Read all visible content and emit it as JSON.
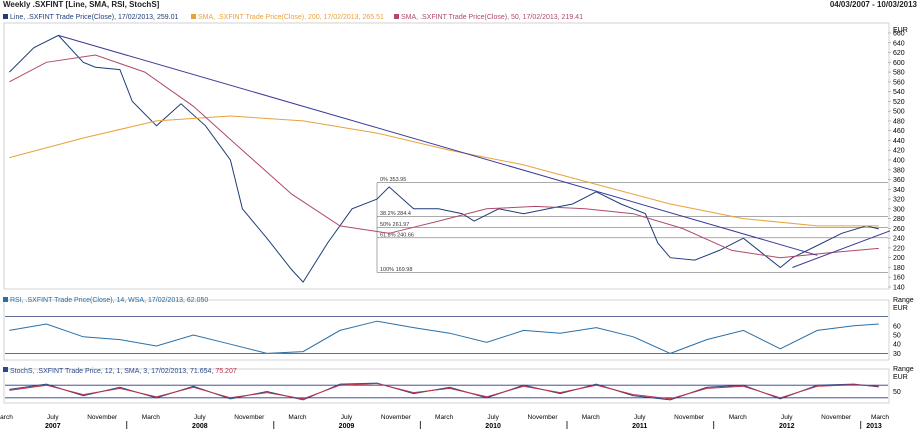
{
  "header": {
    "title": "Weekly .SXFINT [Line, SMA, RSI, StochS]",
    "date_range": "04/03/2007 - 10/03/2013"
  },
  "legends": {
    "main": [
      {
        "text": "Line, .SXFINT Trade Price(Close), 17/02/2013, 259.01",
        "color": "#1f3d7a"
      },
      {
        "text": "SMA, .SXFINT Trade Price(Close), 200, 17/02/2013, 265.51",
        "color": "#e8a23c"
      },
      {
        "text": "SMA, .SXFINT Trade Price(Close), 50, 17/02/2013, 219.41",
        "color": "#b04a6a"
      }
    ],
    "rsi": {
      "text": "RSI, .SXFINT Trade Price(Close), 14, WSA, 17/02/2013, 62.050",
      "color": "#2a6fa6"
    },
    "stoch_prefix": "StochS, .SXFINT Trade Price, 12, 1, SMA, 3, 17/02/2013, 71.654, ",
    "stoch_value": "75.207",
    "stoch_colors": {
      "k": "#2b4a8a",
      "d": "#c0304a"
    }
  },
  "axes": {
    "main_unit": "EUR",
    "main_ticks": [
      "660",
      "640",
      "620",
      "600",
      "580",
      "560",
      "540",
      "520",
      "500",
      "480",
      "460",
      "440",
      "420",
      "400",
      "380",
      "360",
      "340",
      "320",
      "300",
      "280",
      "260",
      "240",
      "220",
      "200",
      "180",
      "160",
      "140"
    ],
    "rsi_range": "Range",
    "rsi_unit": "EUR",
    "rsi_ticks": [
      "60",
      "50",
      "40",
      "30"
    ],
    "stoch_range": "Range",
    "stoch_unit": "EUR",
    "stoch_ticks": [
      "50"
    ],
    "x_months": [
      "March",
      "July",
      "November",
      "March",
      "July",
      "November",
      "March",
      "July",
      "November",
      "March",
      "July",
      "November",
      "March",
      "July",
      "November",
      "March",
      "July",
      "November",
      "March"
    ],
    "x_years": [
      "2007",
      "2008",
      "2009",
      "2010",
      "2011",
      "2012",
      "2013"
    ]
  },
  "fib_labels": [
    {
      "text": "0%  353.95",
      "value": 353.95
    },
    {
      "text": "38.2%  284.4",
      "value": 284.4
    },
    {
      "text": "50%  261.97",
      "value": 261.97
    },
    {
      "text": "61.8%  240.66",
      "value": 240.66
    },
    {
      "text": "100%  169.98",
      "value": 169.98
    }
  ],
  "chart_data": {
    "type": "line",
    "x_range": [
      "2007-03-04",
      "2013-03-10"
    ],
    "main": {
      "ylim": [
        140,
        660
      ],
      "series": [
        {
          "name": "Line, .SXFINT Trade Price(Close)",
          "color": "#1f3d7a",
          "x": [
            "2007-03",
            "2007-05",
            "2007-07",
            "2007-09",
            "2007-10",
            "2007-12",
            "2008-01",
            "2008-03",
            "2008-05",
            "2008-07",
            "2008-09",
            "2008-10",
            "2008-12",
            "2009-02",
            "2009-03",
            "2009-05",
            "2009-07",
            "2009-09",
            "2009-10",
            "2009-12",
            "2010-02",
            "2010-04",
            "2010-05",
            "2010-07",
            "2010-09",
            "2010-11",
            "2011-01",
            "2011-03",
            "2011-05",
            "2011-07",
            "2011-08",
            "2011-09",
            "2011-11",
            "2012-01",
            "2012-03",
            "2012-05",
            "2012-06",
            "2012-07",
            "2012-09",
            "2012-11",
            "2013-01",
            "2013-02"
          ],
          "y": [
            580,
            630,
            655,
            600,
            590,
            585,
            520,
            470,
            515,
            470,
            400,
            300,
            240,
            175,
            150,
            230,
            300,
            320,
            345,
            300,
            300,
            290,
            275,
            300,
            290,
            300,
            310,
            335,
            310,
            290,
            230,
            200,
            195,
            215,
            240,
            200,
            180,
            200,
            225,
            250,
            265,
            259
          ]
        },
        {
          "name": "SMA, .SXFINT Trade Price(Close), 200",
          "color": "#e8a23c",
          "x": [
            "2007-03",
            "2007-09",
            "2008-03",
            "2008-09",
            "2009-03",
            "2009-09",
            "2010-03",
            "2010-09",
            "2011-03",
            "2011-09",
            "2012-03",
            "2012-09",
            "2013-02"
          ],
          "y": [
            405,
            445,
            480,
            490,
            480,
            455,
            420,
            390,
            350,
            310,
            280,
            265,
            265
          ]
        },
        {
          "name": "SMA, .SXFINT Trade Price(Close), 50",
          "color": "#b04a6a",
          "x": [
            "2007-03",
            "2007-06",
            "2007-10",
            "2008-02",
            "2008-06",
            "2008-10",
            "2009-02",
            "2009-06",
            "2009-10",
            "2010-02",
            "2010-06",
            "2010-10",
            "2011-02",
            "2011-06",
            "2011-10",
            "2012-02",
            "2012-06",
            "2012-10",
            "2013-02"
          ],
          "y": [
            560,
            600,
            615,
            580,
            510,
            420,
            330,
            265,
            250,
            275,
            300,
            305,
            300,
            290,
            260,
            215,
            200,
            210,
            219
          ]
        }
      ],
      "trendlines": [
        {
          "x": [
            "2007-07",
            "2012-09"
          ],
          "y": [
            655,
            205
          ]
        },
        {
          "x": [
            "2012-07",
            "2013-03"
          ],
          "y": [
            180,
            255
          ]
        }
      ]
    },
    "rsi": {
      "ylim": [
        25,
        75
      ],
      "series": [
        {
          "name": "RSI, .SXFINT Trade Price(Close), 14, WSA",
          "color": "#2a6fa6",
          "x": [
            "2007-03",
            "2007-06",
            "2007-09",
            "2007-12",
            "2008-03",
            "2008-06",
            "2008-09",
            "2008-12",
            "2009-03",
            "2009-06",
            "2009-09",
            "2009-12",
            "2010-03",
            "2010-06",
            "2010-09",
            "2010-12",
            "2011-03",
            "2011-06",
            "2011-09",
            "2011-12",
            "2012-03",
            "2012-06",
            "2012-09",
            "2012-12",
            "2013-02"
          ],
          "y": [
            55,
            62,
            48,
            45,
            38,
            50,
            40,
            30,
            32,
            55,
            65,
            58,
            52,
            42,
            55,
            52,
            58,
            48,
            30,
            45,
            55,
            35,
            55,
            60,
            62
          ]
        }
      ]
    },
    "stoch": {
      "ylim": [
        0,
        100
      ],
      "series": [
        {
          "name": "StochS %K",
          "color": "#2b4a8a",
          "x": [
            "2007-03",
            "2007-06",
            "2007-09",
            "2007-12",
            "2008-03",
            "2008-06",
            "2008-09",
            "2008-12",
            "2009-03",
            "2009-06",
            "2009-09",
            "2009-12",
            "2010-03",
            "2010-06",
            "2010-09",
            "2010-12",
            "2011-03",
            "2011-06",
            "2011-09",
            "2011-12",
            "2012-03",
            "2012-06",
            "2012-09",
            "2012-12",
            "2013-02"
          ],
          "y": [
            60,
            85,
            30,
            70,
            20,
            75,
            15,
            50,
            10,
            85,
            90,
            40,
            70,
            20,
            80,
            40,
            85,
            30,
            10,
            70,
            80,
            15,
            80,
            85,
            72
          ]
        },
        {
          "name": "StochS %D",
          "color": "#c0304a",
          "x": [
            "2007-03",
            "2007-06",
            "2007-09",
            "2007-12",
            "2008-03",
            "2008-06",
            "2008-09",
            "2008-12",
            "2009-03",
            "2009-06",
            "2009-09",
            "2009-12",
            "2010-03",
            "2010-06",
            "2010-09",
            "2010-12",
            "2011-03",
            "2011-06",
            "2011-09",
            "2011-12",
            "2012-03",
            "2012-06",
            "2012-09",
            "2012-12",
            "2013-02"
          ],
          "y": [
            55,
            80,
            35,
            65,
            25,
            70,
            20,
            45,
            15,
            80,
            88,
            45,
            65,
            25,
            75,
            45,
            80,
            35,
            15,
            65,
            75,
            20,
            75,
            82,
            75
          ]
        }
      ]
    }
  }
}
